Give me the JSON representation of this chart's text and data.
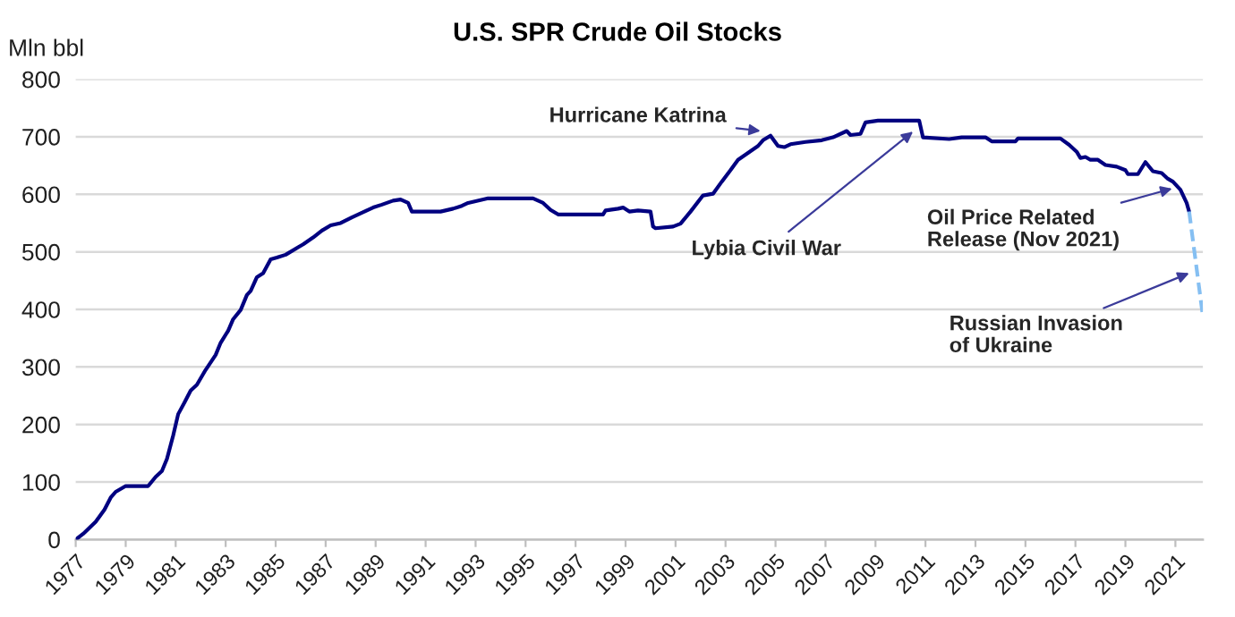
{
  "chart_data": {
    "type": "line",
    "title": "U.S. SPR Crude Oil Stocks",
    "ylabel": "Mln bbl",
    "series": [
      {
        "color": "#000080",
        "line_style": "solid",
        "x": [
          1977.0,
          1977.3,
          1977.8,
          1978.15,
          1978.4,
          1978.6,
          1979.0,
          1979.9,
          1980.2,
          1980.45,
          1980.65,
          1980.9,
          1981.1,
          1981.35,
          1981.6,
          1981.85,
          1982.2,
          1982.6,
          1982.8,
          1983.1,
          1983.3,
          1983.6,
          1983.85,
          1984.0,
          1984.25,
          1984.5,
          1984.8,
          1985.05,
          1985.4,
          1985.9,
          1986.1,
          1986.5,
          1986.85,
          1987.2,
          1987.6,
          1988.05,
          1988.55,
          1988.9,
          1989.25,
          1989.7,
          1990.0,
          1990.3,
          1990.45,
          1991.6,
          1992.1,
          1992.45,
          1992.7,
          1993.5,
          1995.3,
          1995.7,
          1996.0,
          1996.3,
          1998.1,
          1998.2,
          1998.7,
          1998.9,
          1999.15,
          1999.5,
          2000.0,
          2000.1,
          2000.2,
          2000.9,
          2001.2,
          2001.6,
          2002.1,
          2002.5,
          2002.85,
          2003.2,
          2003.5,
          2003.9,
          2004.3,
          2004.5,
          2004.8,
          2005.1,
          2005.35,
          2005.6,
          2006.2,
          2006.85,
          2007.3,
          2007.85,
          2008.0,
          2008.4,
          2008.6,
          2009.1,
          2010.75,
          2010.9,
          2011.95,
          2012.45,
          2013.4,
          2013.65,
          2014.6,
          2014.7,
          2016.4,
          2016.75,
          2017.05,
          2017.2,
          2017.4,
          2017.6,
          2017.9,
          2018.2,
          2018.65,
          2019.0,
          2019.1,
          2019.5,
          2019.8,
          2020.1,
          2020.45,
          2020.7,
          2020.9,
          2021.2,
          2021.45,
          2021.55
        ],
        "values": [
          0,
          10,
          31,
          52,
          73,
          83,
          93,
          93,
          109,
          119,
          140,
          181,
          218,
          238,
          259,
          269,
          295,
          321,
          342,
          363,
          383,
          399,
          425,
          432,
          456,
          463,
          487,
          490,
          495,
          508,
          513,
          525,
          537,
          546,
          550,
          560,
          570,
          577,
          582,
          589,
          591,
          585,
          570,
          570,
          575,
          580,
          585,
          593,
          593,
          585,
          573,
          565,
          565,
          572,
          575,
          577,
          570,
          572,
          570,
          544,
          541,
          544,
          549,
          570,
          598,
          601,
          622,
          642,
          660,
          672,
          684,
          694,
          702,
          684,
          682,
          687,
          691,
          694,
          699,
          710,
          703,
          705,
          725,
          728,
          728,
          699,
          696,
          699,
          699,
          692,
          692,
          697,
          697,
          686,
          674,
          663,
          665,
          660,
          660,
          651,
          648,
          642,
          635,
          635,
          656,
          640,
          637,
          627,
          622,
          608,
          585,
          570
        ]
      },
      {
        "color": "#85bff2",
        "line_style": "dashed",
        "x": [
          2021.55,
          2022.1
        ],
        "values": [
          570,
          388
        ]
      }
    ],
    "xlim": [
      1977,
      2022.1
    ],
    "xticks": [
      1977,
      1979,
      1981,
      1983,
      1985,
      1987,
      1989,
      1991,
      1993,
      1995,
      1997,
      1999,
      2001,
      2003,
      2005,
      2007,
      2009,
      2011,
      2013,
      2015,
      2017,
      2019,
      2021
    ],
    "ylim": [
      0,
      800
    ],
    "yticks": [
      0,
      100,
      200,
      300,
      400,
      500,
      600,
      700,
      800
    ],
    "grid": "y",
    "annotations": [
      {
        "text": "Hurricane Katrina",
        "x": 2004.4,
        "y": 710
      },
      {
        "text": "Lybia Civil War",
        "x": 2010.5,
        "y": 709
      },
      {
        "text": "Oil Price Related\nRelease (Nov 2021)",
        "x": 2020.87,
        "y": 610
      },
      {
        "text": "Russian Invasion\nof Ukraine",
        "x": 2021.55,
        "y": 463
      }
    ]
  }
}
